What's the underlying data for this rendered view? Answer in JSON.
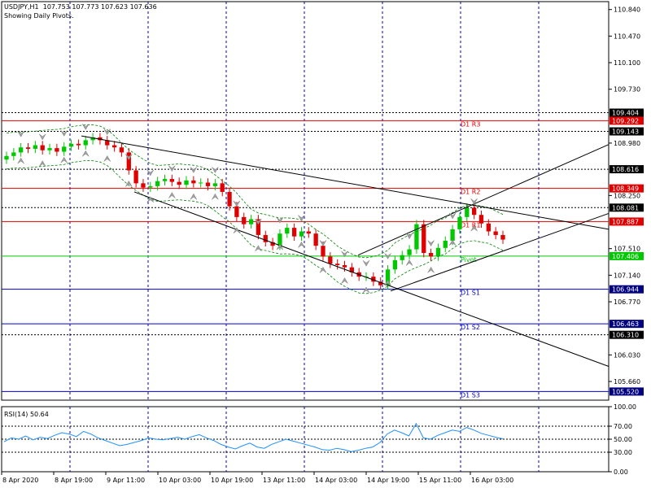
{
  "window": {
    "symbol_line": "USDJPY,H1  107.753 107.773 107.623 107.636",
    "subtitle": "Showing Daily Pivots."
  },
  "colors": {
    "grid": "#0000c8",
    "bull": "#00c800",
    "bear": "#e00000",
    "resistance": "#e00000",
    "support": "#0000c8",
    "pivot": "#00c800",
    "channel": "#000000",
    "envelope": "#008000",
    "rsi": "#1e90ff",
    "tag_bg": "#000080",
    "tag_red": "#e00000",
    "tag_green": "#00c800",
    "tag_black": "#000000"
  },
  "chart_data": [
    {
      "type": "candlestick",
      "title": "USDJPY,H1",
      "ylim": [
        105.4,
        110.95
      ],
      "y_ticks": [
        "110.840",
        "110.470",
        "110.100",
        "109.730",
        "108.980",
        "108.250",
        "107.510",
        "107.140",
        "106.770",
        "106.030",
        "105.660"
      ],
      "y_tick_values": [
        110.84,
        110.47,
        110.1,
        109.73,
        108.98,
        108.25,
        107.51,
        107.14,
        106.77,
        106.03,
        105.66
      ],
      "x_labels": [
        "8 Apr 2020",
        "8 Apr 19:00",
        "9 Apr 11:00",
        "10 Apr 03:00",
        "10 Apr 19:00",
        "13 Apr 11:00",
        "14 Apr 03:00",
        "14 Apr 19:00",
        "15 Apr 11:00",
        "16 Apr 03:00"
      ],
      "close_series": [
        108.8,
        108.85,
        108.92,
        108.9,
        108.95,
        108.88,
        108.91,
        108.86,
        108.93,
        108.97,
        108.95,
        109.02,
        109.06,
        109.02,
        108.95,
        108.92,
        108.85,
        108.6,
        108.42,
        108.36,
        108.38,
        108.45,
        108.48,
        108.44,
        108.4,
        108.46,
        108.42,
        108.43,
        108.38,
        108.42,
        108.3,
        108.1,
        107.95,
        107.85,
        107.92,
        107.7,
        107.6,
        107.55,
        107.72,
        107.8,
        107.68,
        107.75,
        107.72,
        107.55,
        107.4,
        107.3,
        107.28,
        107.25,
        107.18,
        107.12,
        107.12,
        107.05,
        107.0,
        107.22,
        107.35,
        107.42,
        107.5,
        107.85,
        107.45,
        107.4,
        107.52,
        107.62,
        107.78,
        107.95,
        108.08,
        107.98,
        107.86,
        107.75,
        107.7,
        107.636
      ],
      "pivot_levels": [
        {
          "label": "D1 R3",
          "value": "109.292",
          "kind": "resistance"
        },
        {
          "label": "D1 R2",
          "value": "108.349",
          "kind": "resistance"
        },
        {
          "label": "D1 R1",
          "value": "107.887",
          "kind": "resistance"
        },
        {
          "label": "Pivot",
          "value": "107.406",
          "kind": "pivot"
        },
        {
          "label": "D1 S1",
          "value": "106.944",
          "kind": "support"
        },
        {
          "label": "D1 S2",
          "value": "106.463",
          "kind": "support"
        },
        {
          "label": "D1 S3",
          "value": "105.520",
          "kind": "support"
        }
      ],
      "dotted_levels": [
        "109.404",
        "109.143",
        "108.616",
        "108.081",
        "106.310"
      ]
    },
    {
      "type": "line",
      "title": "RSI(14) 50.64",
      "ylim": [
        0,
        100
      ],
      "y_ticks": [
        "100.00",
        "70.00",
        "50.00",
        "30.00",
        "0.00"
      ],
      "levels": [
        70,
        50,
        30
      ],
      "values": [
        46,
        52,
        50,
        55,
        49,
        53,
        51,
        56,
        60,
        58,
        54,
        62,
        58,
        52,
        48,
        44,
        40,
        42,
        45,
        48,
        52,
        50,
        49,
        51,
        53,
        50,
        54,
        57,
        52,
        48,
        42,
        38,
        35,
        40,
        44,
        38,
        36,
        42,
        46,
        50,
        47,
        44,
        41,
        38,
        34,
        33,
        36,
        34,
        31,
        33,
        36,
        38,
        45,
        58,
        64,
        60,
        55,
        74,
        52,
        50,
        56,
        60,
        64,
        62,
        68,
        64,
        59,
        56,
        53,
        50.64
      ]
    }
  ]
}
